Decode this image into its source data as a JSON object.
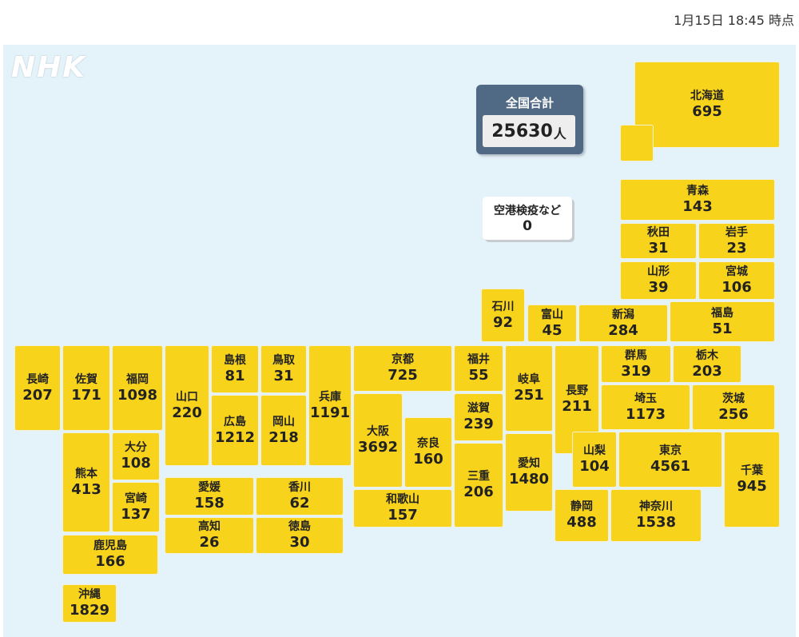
{
  "header": {
    "timestamp": "1月15日 18:45 時点"
  },
  "logo": "NHK",
  "total": {
    "label": "全国合計",
    "count": "25630",
    "unit": "人"
  },
  "airport": {
    "label": "空港検疫など",
    "count": "0"
  },
  "colors": {
    "prefecture": "#f8d31c",
    "map_background": "#e4f2fa",
    "total_panel": "#506a85"
  },
  "prefectures": [
    {
      "name": "北海道",
      "count": "695"
    },
    {
      "name": "青森",
      "count": "143"
    },
    {
      "name": "秋田",
      "count": "31"
    },
    {
      "name": "岩手",
      "count": "23"
    },
    {
      "name": "山形",
      "count": "39"
    },
    {
      "name": "宮城",
      "count": "106"
    },
    {
      "name": "石川",
      "count": "92"
    },
    {
      "name": "富山",
      "count": "45"
    },
    {
      "name": "新潟",
      "count": "284"
    },
    {
      "name": "福島",
      "count": "51"
    },
    {
      "name": "長崎",
      "count": "207"
    },
    {
      "name": "佐賀",
      "count": "171"
    },
    {
      "name": "福岡",
      "count": "1098"
    },
    {
      "name": "山口",
      "count": "220"
    },
    {
      "name": "島根",
      "count": "81"
    },
    {
      "name": "鳥取",
      "count": "31"
    },
    {
      "name": "兵庫",
      "count": "1191"
    },
    {
      "name": "京都",
      "count": "725"
    },
    {
      "name": "福井",
      "count": "55"
    },
    {
      "name": "岐阜",
      "count": "251"
    },
    {
      "name": "長野",
      "count": "211"
    },
    {
      "name": "群馬",
      "count": "319"
    },
    {
      "name": "栃木",
      "count": "203"
    },
    {
      "name": "広島",
      "count": "1212"
    },
    {
      "name": "岡山",
      "count": "218"
    },
    {
      "name": "大阪",
      "count": "3692"
    },
    {
      "name": "滋賀",
      "count": "239"
    },
    {
      "name": "埼玉",
      "count": "1173"
    },
    {
      "name": "茨城",
      "count": "256"
    },
    {
      "name": "熊本",
      "count": "413"
    },
    {
      "name": "大分",
      "count": "108"
    },
    {
      "name": "奈良",
      "count": "160"
    },
    {
      "name": "三重",
      "count": "206"
    },
    {
      "name": "愛知",
      "count": "1480"
    },
    {
      "name": "山梨",
      "count": "104"
    },
    {
      "name": "東京",
      "count": "4561"
    },
    {
      "name": "千葉",
      "count": "945"
    },
    {
      "name": "宮崎",
      "count": "137"
    },
    {
      "name": "愛媛",
      "count": "158"
    },
    {
      "name": "香川",
      "count": "62"
    },
    {
      "name": "和歌山",
      "count": "157"
    },
    {
      "name": "静岡",
      "count": "488"
    },
    {
      "name": "神奈川",
      "count": "1538"
    },
    {
      "name": "高知",
      "count": "26"
    },
    {
      "name": "徳島",
      "count": "30"
    },
    {
      "name": "鹿児島",
      "count": "166"
    },
    {
      "name": "沖縄",
      "count": "1829"
    }
  ]
}
